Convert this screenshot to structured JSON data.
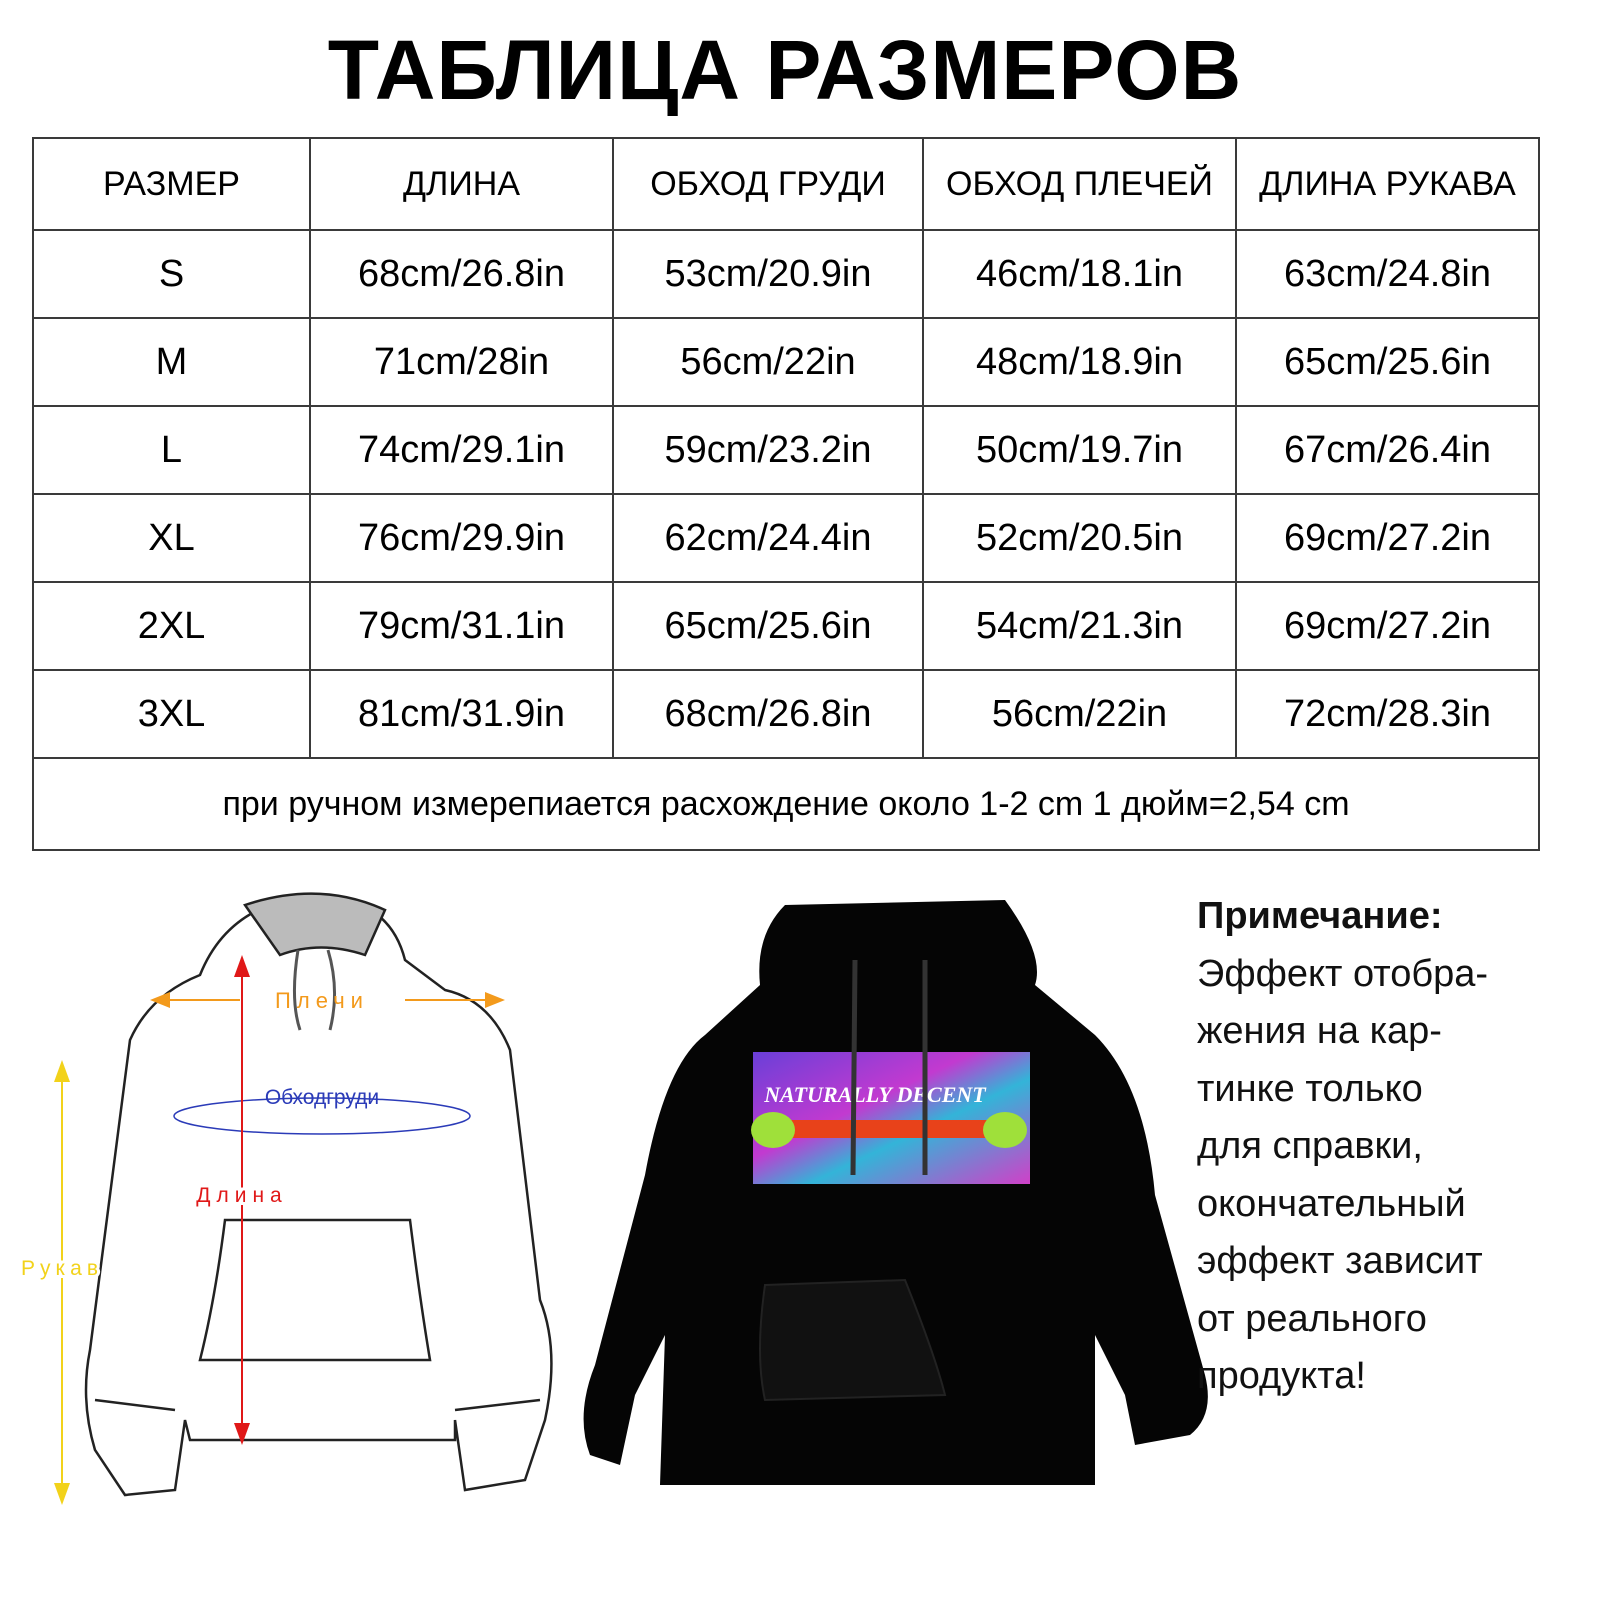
{
  "title": "ТАБЛИЦА РАЗМЕРОВ",
  "table": {
    "headers": [
      "РАЗМЕР",
      "ДЛИНА",
      "ОБХОД ГРУДИ",
      "ОБХОД ПЛЕЧЕЙ",
      "ДЛИНА РУКАВА"
    ],
    "rows": [
      [
        "S",
        "68cm/26.8in",
        "53cm/20.9in",
        "46cm/18.1in",
        "63cm/24.8in"
      ],
      [
        "M",
        "71cm/28in",
        "56cm/22in",
        "48cm/18.9in",
        "65cm/25.6in"
      ],
      [
        "L",
        "74cm/29.1in",
        "59cm/23.2in",
        "50cm/19.7in",
        "67cm/26.4in"
      ],
      [
        "XL",
        "76cm/29.9in",
        "62cm/24.4in",
        "52cm/20.5in",
        "69cm/27.2in"
      ],
      [
        "2XL",
        "79cm/31.1in",
        "65cm/25.6in",
        "54cm/21.3in",
        "69cm/27.2in"
      ],
      [
        "3XL",
        "81cm/31.9in",
        "68cm/26.8in",
        "56cm/22in",
        "72cm/28.3in"
      ]
    ],
    "footnote": "при ручном измерепиается расхождение около 1-2 cm 1 дюйм=2,54 cm"
  },
  "diagram": {
    "shoulders": "Плечи",
    "chest": "Обходгруди",
    "length": "Длина",
    "sleeve": "Рукав",
    "colors": {
      "shoulders": "#f39a1c",
      "chest": "#2b3bb8",
      "length": "#e01818",
      "sleeve": "#f2d21a"
    }
  },
  "product": {
    "print_text": "NATURALLY DECENT",
    "color": "#000000"
  },
  "note": {
    "heading": "Примечание:",
    "lines": [
      "Эффект отобра-",
      "жения на кар-",
      "тинке только",
      "для справки,",
      "окончательный",
      "эффект зависит",
      "от реального",
      "продукта!"
    ]
  }
}
